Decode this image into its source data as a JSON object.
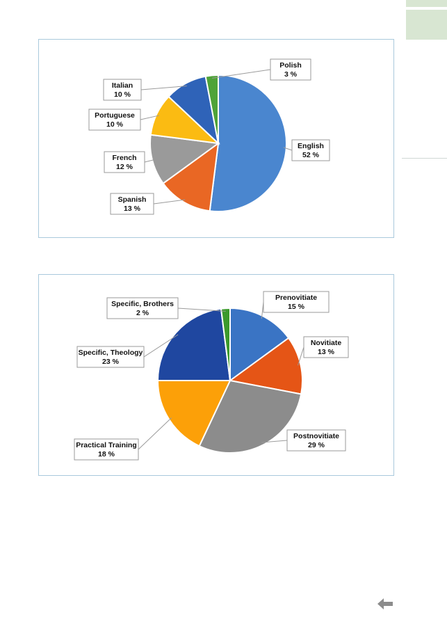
{
  "chart_data": [
    {
      "type": "pie",
      "slices": [
        {
          "label": "English",
          "value_label": "52 %",
          "value": 52,
          "color": "#4a86cf"
        },
        {
          "label": "Spanish",
          "value_label": "13 %",
          "value": 13,
          "color": "#e96724"
        },
        {
          "label": "French",
          "value_label": "12 %",
          "value": 12,
          "color": "#9a9a9a"
        },
        {
          "label": "Portuguese",
          "value_label": "10 %",
          "value": 10,
          "color": "#fbbb12"
        },
        {
          "label": "Italian",
          "value_label": "10 %",
          "value": 10,
          "color": "#2f63b8"
        },
        {
          "label": "Polish",
          "value_label": "3 %",
          "value": 3,
          "color": "#4fa338"
        }
      ]
    },
    {
      "type": "pie",
      "slices": [
        {
          "label": "Prenovitiate",
          "value_label": "15 %",
          "value": 15,
          "color": "#3a74c4"
        },
        {
          "label": "Novitiate",
          "value_label": "13 %",
          "value": 13,
          "color": "#e55516"
        },
        {
          "label": "Postnovitiate",
          "value_label": "29 %",
          "value": 29,
          "color": "#8c8c8c"
        },
        {
          "label": "Practical Training",
          "value_label": "18 %",
          "value": 18,
          "color": "#fca008"
        },
        {
          "label": "Specific, Theology",
          "value_label": "23 %",
          "value": 23,
          "color": "#1f47a0"
        },
        {
          "label": "Specific, Brothers",
          "value_label": "2 %",
          "value": 2,
          "color": "#3c9a2c"
        }
      ]
    }
  ],
  "nav": {
    "back_icon": "back-arrow-icon"
  }
}
